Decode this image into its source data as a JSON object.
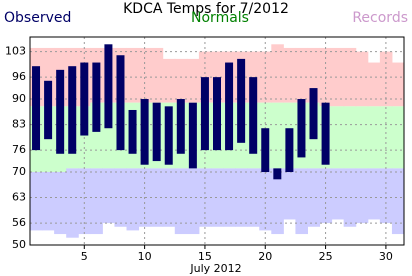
{
  "chart_data": {
    "type": "range-bar",
    "title": "KDCA Temps for 7/2012",
    "x_label": "July 2012",
    "x": [
      1,
      2,
      3,
      4,
      5,
      6,
      7,
      8,
      9,
      10,
      11,
      12,
      13,
      14,
      15,
      16,
      17,
      18,
      19,
      20,
      21,
      22,
      23,
      24,
      25,
      26,
      27,
      28,
      29,
      30,
      31
    ],
    "series": [
      {
        "name": "Observed",
        "color": "#000066",
        "high": [
          99,
          95,
          98,
          99,
          100,
          100,
          105,
          102,
          87,
          90,
          89,
          88,
          90,
          89,
          96,
          96,
          100,
          101,
          96,
          82,
          71,
          82,
          90,
          93,
          89,
          null,
          null,
          null,
          null,
          null,
          null
        ],
        "low": [
          76,
          79,
          75,
          75,
          80,
          81,
          82,
          76,
          75,
          72,
          73,
          72,
          75,
          71,
          76,
          76,
          76,
          78,
          75,
          70,
          68,
          70,
          74,
          79,
          72,
          null,
          null,
          null,
          null,
          null,
          null
        ]
      },
      {
        "name": "Normals",
        "color": "#ccffcc",
        "high": [
          88,
          88,
          88,
          88,
          88,
          89,
          89,
          89,
          89,
          89,
          89,
          89,
          89,
          89,
          89,
          89,
          89,
          89,
          89,
          89,
          89,
          89,
          89,
          89,
          88,
          88,
          88,
          88,
          88,
          88,
          88
        ],
        "low": [
          70,
          70,
          70,
          71,
          71,
          71,
          71,
          71,
          71,
          71,
          71,
          71,
          71,
          71,
          71,
          71,
          71,
          71,
          71,
          71,
          71,
          71,
          71,
          71,
          71,
          71,
          71,
          71,
          71,
          71,
          71
        ]
      },
      {
        "name": "Records",
        "color": "#ccccff",
        "high_color": "#ffcccc",
        "high": [
          104,
          104,
          104,
          104,
          104,
          104,
          104,
          104,
          104,
          104,
          104,
          101,
          101,
          101,
          103,
          103,
          103,
          103,
          103,
          103,
          105,
          104,
          104,
          104,
          104,
          104,
          104,
          103,
          100,
          103,
          100
        ],
        "low": [
          54,
          54,
          53,
          52,
          53,
          53,
          56,
          55,
          54,
          55,
          55,
          55,
          53,
          53,
          55,
          55,
          55,
          55,
          55,
          54,
          53,
          57,
          53,
          55,
          56,
          57,
          55,
          56,
          57,
          56,
          53
        ]
      }
    ],
    "xlim": [
      0.5,
      31.5
    ],
    "ylim": [
      50,
      107
    ],
    "xticks": [
      5,
      10,
      15,
      20,
      25,
      30
    ],
    "yticks": [
      50,
      56,
      63,
      70,
      76,
      83,
      90,
      96,
      103
    ],
    "grid": true
  }
}
